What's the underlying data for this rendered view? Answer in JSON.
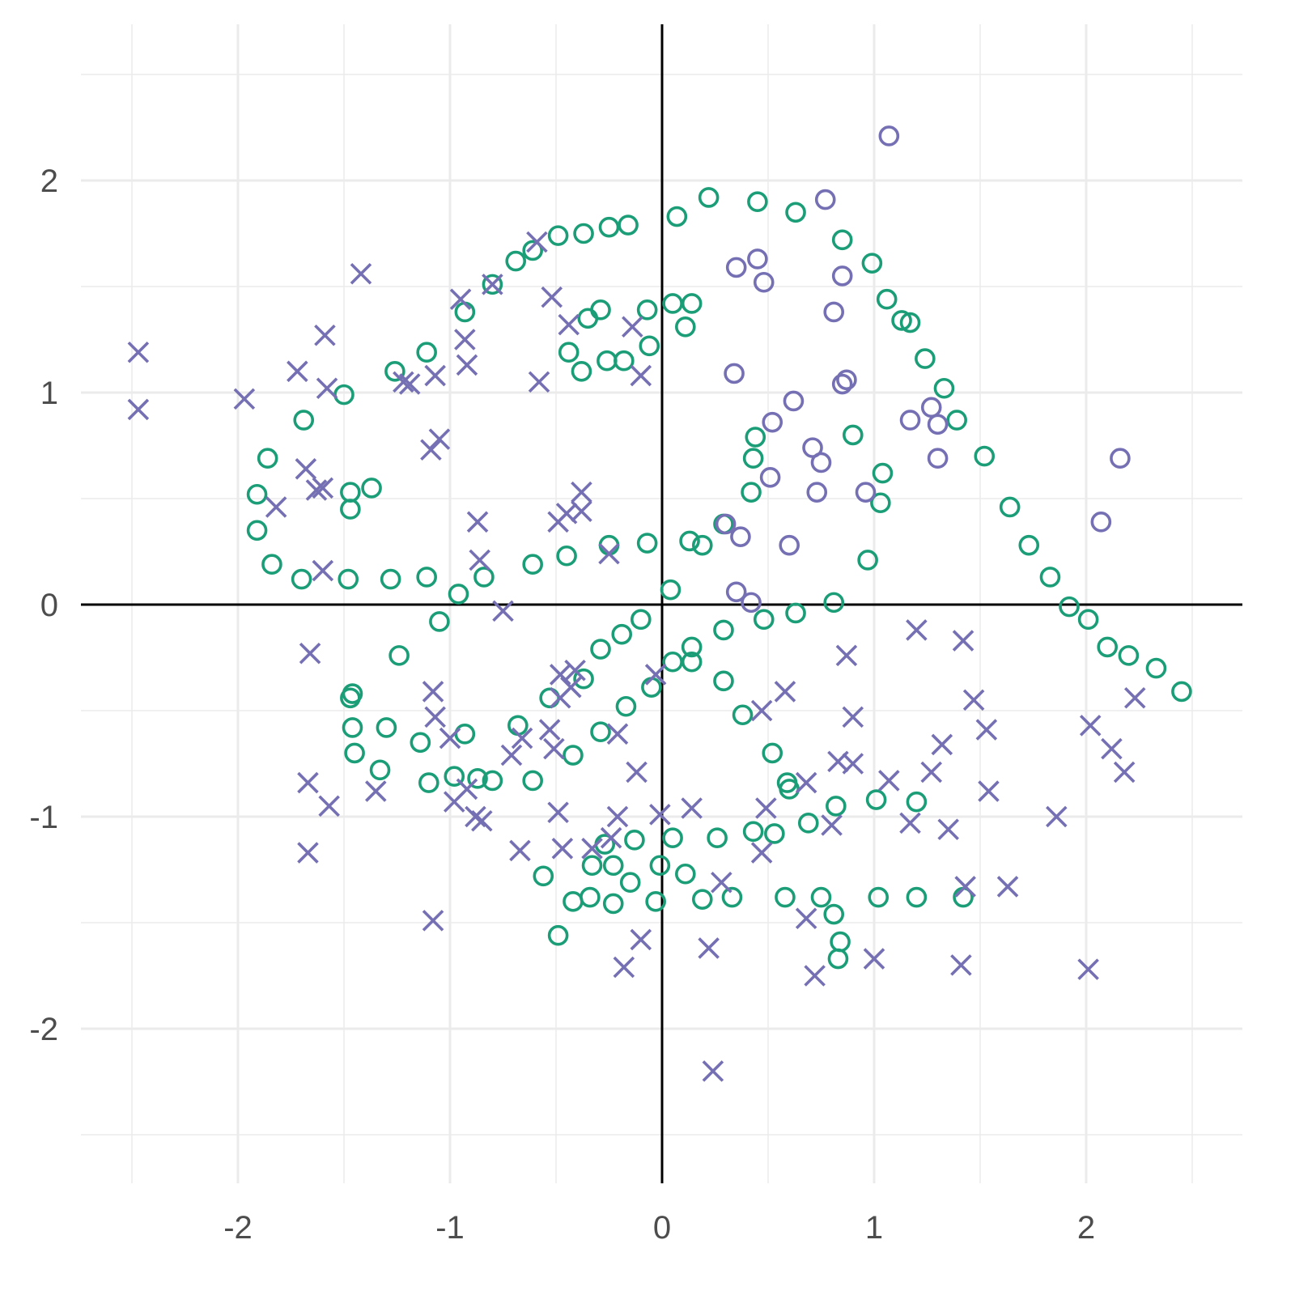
{
  "chart_data": {
    "type": "scatter",
    "title": "",
    "xlabel": "",
    "ylabel": "",
    "xlim": [
      -2.5,
      2.5
    ],
    "ylim": [
      -2.5,
      2.5
    ],
    "x_ticks": [
      -2,
      -1,
      0,
      1,
      2
    ],
    "y_ticks": [
      -2,
      -1,
      0,
      1,
      2
    ],
    "x_tick_labels": [
      "-2",
      "-1",
      "0",
      "1",
      "2"
    ],
    "y_tick_labels": [
      "-2",
      "-1",
      "0",
      "1",
      "2"
    ],
    "grid": true,
    "reference_lines": {
      "x": 0,
      "y": 0
    },
    "legend": "none",
    "series": [
      {
        "marker": "circle",
        "color": "#1b9e77",
        "points": [
          [
            -0.69,
            1.62
          ],
          [
            -0.61,
            1.67
          ],
          [
            -0.49,
            1.74
          ],
          [
            -0.37,
            1.75
          ],
          [
            -0.25,
            1.78
          ],
          [
            -0.16,
            1.79
          ],
          [
            0.07,
            1.83
          ],
          [
            0.22,
            1.92
          ],
          [
            0.45,
            1.9
          ],
          [
            0.63,
            1.85
          ],
          [
            0.85,
            1.72
          ],
          [
            0.99,
            1.61
          ],
          [
            1.06,
            1.44
          ],
          [
            1.13,
            1.34
          ],
          [
            1.17,
            1.33
          ],
          [
            1.24,
            1.16
          ],
          [
            1.33,
            1.02
          ],
          [
            1.39,
            0.87
          ],
          [
            1.52,
            0.7
          ],
          [
            1.64,
            0.46
          ],
          [
            1.73,
            0.28
          ],
          [
            1.83,
            0.13
          ],
          [
            1.92,
            -0.01
          ],
          [
            2.01,
            -0.07
          ],
          [
            2.1,
            -0.2
          ],
          [
            2.2,
            -0.24
          ],
          [
            2.33,
            -0.3
          ],
          [
            2.45,
            -0.41
          ],
          [
            -0.93,
            1.38
          ],
          [
            -0.8,
            1.51
          ],
          [
            -0.29,
            1.39
          ],
          [
            -0.35,
            1.35
          ],
          [
            -0.44,
            1.19
          ],
          [
            -0.38,
            1.1
          ],
          [
            -0.26,
            1.15
          ],
          [
            -0.18,
            1.15
          ],
          [
            -0.06,
            1.22
          ],
          [
            -0.07,
            1.39
          ],
          [
            0.05,
            1.42
          ],
          [
            0.14,
            1.42
          ],
          [
            0.11,
            1.31
          ],
          [
            -1.26,
            1.1
          ],
          [
            -1.11,
            1.19
          ],
          [
            -1.5,
            0.99
          ],
          [
            -1.69,
            0.87
          ],
          [
            -1.86,
            0.69
          ],
          [
            -1.91,
            0.52
          ],
          [
            -1.91,
            0.35
          ],
          [
            -1.84,
            0.19
          ],
          [
            -1.7,
            0.12
          ],
          [
            -1.48,
            0.12
          ],
          [
            -1.28,
            0.12
          ],
          [
            -1.11,
            0.13
          ],
          [
            -0.96,
            0.05
          ],
          [
            -0.84,
            0.13
          ],
          [
            -0.61,
            0.19
          ],
          [
            -0.45,
            0.23
          ],
          [
            -0.25,
            0.28
          ],
          [
            -0.07,
            0.29
          ],
          [
            0.04,
            0.07
          ],
          [
            0.13,
            0.3
          ],
          [
            0.19,
            0.28
          ],
          [
            0.29,
            0.38
          ],
          [
            -1.47,
            0.53
          ],
          [
            -1.47,
            0.45
          ],
          [
            -1.37,
            0.55
          ],
          [
            0.42,
            0.53
          ],
          [
            0.43,
            0.69
          ],
          [
            0.44,
            0.79
          ],
          [
            0.81,
            0.01
          ],
          [
            0.9,
            0.8
          ],
          [
            0.97,
            0.21
          ],
          [
            1.03,
            0.48
          ],
          [
            1.04,
            0.62
          ],
          [
            -1.05,
            -0.08
          ],
          [
            -1.24,
            -0.24
          ],
          [
            -1.46,
            -0.42
          ],
          [
            -1.47,
            -0.44
          ],
          [
            -1.46,
            -0.58
          ],
          [
            -1.45,
            -0.7
          ],
          [
            -1.3,
            -0.58
          ],
          [
            -1.33,
            -0.78
          ],
          [
            -1.14,
            -0.65
          ],
          [
            -1.1,
            -0.84
          ],
          [
            -0.98,
            -0.81
          ],
          [
            -0.93,
            -0.61
          ],
          [
            -0.87,
            -0.82
          ],
          [
            -0.8,
            -0.83
          ],
          [
            -0.68,
            -0.57
          ],
          [
            -0.61,
            -0.83
          ],
          [
            -0.53,
            -0.44
          ],
          [
            -0.42,
            -0.71
          ],
          [
            -0.37,
            -0.35
          ],
          [
            -0.29,
            -0.6
          ],
          [
            -0.29,
            -0.21
          ],
          [
            -0.19,
            -0.14
          ],
          [
            -0.17,
            -0.48
          ],
          [
            -0.1,
            -0.07
          ],
          [
            -0.05,
            -0.39
          ],
          [
            0.05,
            -0.27
          ],
          [
            0.14,
            -0.2
          ],
          [
            0.14,
            -0.27
          ],
          [
            0.29,
            -0.12
          ],
          [
            0.29,
            -0.36
          ],
          [
            0.38,
            -0.52
          ],
          [
            0.48,
            -0.07
          ],
          [
            0.63,
            -0.04
          ],
          [
            0.52,
            -0.7
          ],
          [
            0.59,
            -0.84
          ],
          [
            0.6,
            -0.87
          ],
          [
            0.69,
            -1.03
          ],
          [
            0.82,
            -0.95
          ],
          [
            1.01,
            -0.92
          ],
          [
            1.2,
            -0.93
          ],
          [
            -0.56,
            -1.28
          ],
          [
            -0.42,
            -1.4
          ],
          [
            -0.34,
            -1.38
          ],
          [
            -0.33,
            -1.23
          ],
          [
            -0.27,
            -1.13
          ],
          [
            -0.23,
            -1.23
          ],
          [
            -0.15,
            -1.31
          ],
          [
            -0.13,
            -1.11
          ],
          [
            -0.23,
            -1.41
          ],
          [
            -0.03,
            -1.4
          ],
          [
            -0.01,
            -1.23
          ],
          [
            0.05,
            -1.1
          ],
          [
            0.11,
            -1.27
          ],
          [
            0.19,
            -1.39
          ],
          [
            0.26,
            -1.1
          ],
          [
            0.33,
            -1.38
          ],
          [
            0.43,
            -1.07
          ],
          [
            0.53,
            -1.08
          ],
          [
            0.58,
            -1.38
          ],
          [
            0.75,
            -1.38
          ],
          [
            0.81,
            -1.46
          ],
          [
            0.84,
            -1.59
          ],
          [
            0.83,
            -1.67
          ],
          [
            1.02,
            -1.38
          ],
          [
            1.2,
            -1.38
          ],
          [
            1.42,
            -1.38
          ],
          [
            -0.49,
            -1.56
          ]
        ]
      },
      {
        "marker": "circle",
        "color": "#7570b3",
        "points": [
          [
            1.07,
            2.21
          ],
          [
            0.77,
            1.91
          ],
          [
            0.35,
            1.59
          ],
          [
            0.45,
            1.63
          ],
          [
            0.48,
            1.52
          ],
          [
            0.85,
            1.55
          ],
          [
            0.81,
            1.38
          ],
          [
            0.34,
            1.09
          ],
          [
            0.62,
            0.96
          ],
          [
            0.85,
            1.04
          ],
          [
            0.87,
            1.06
          ],
          [
            0.52,
            0.86
          ],
          [
            1.17,
            0.87
          ],
          [
            1.27,
            0.93
          ],
          [
            1.3,
            0.85
          ],
          [
            1.3,
            0.69
          ],
          [
            0.71,
            0.74
          ],
          [
            0.75,
            0.67
          ],
          [
            0.51,
            0.6
          ],
          [
            0.73,
            0.53
          ],
          [
            0.96,
            0.53
          ],
          [
            0.3,
            0.38
          ],
          [
            0.37,
            0.32
          ],
          [
            0.6,
            0.28
          ],
          [
            0.35,
            0.06
          ],
          [
            0.42,
            0.01
          ],
          [
            2.16,
            0.69
          ],
          [
            2.07,
            0.39
          ]
        ]
      },
      {
        "marker": "cross",
        "color": "#7570b3",
        "points": [
          [
            -2.47,
            1.19
          ],
          [
            -2.47,
            0.92
          ],
          [
            -1.97,
            0.97
          ],
          [
            -1.72,
            1.1
          ],
          [
            -1.59,
            1.27
          ],
          [
            -1.58,
            1.02
          ],
          [
            -1.42,
            1.56
          ],
          [
            -1.22,
            1.05
          ],
          [
            -1.19,
            1.04
          ],
          [
            -1.07,
            1.08
          ],
          [
            -1.09,
            0.73
          ],
          [
            -1.05,
            0.78
          ],
          [
            -0.95,
            1.44
          ],
          [
            -0.93,
            1.25
          ],
          [
            -0.92,
            1.13
          ],
          [
            -0.8,
            1.51
          ],
          [
            -0.58,
            1.05
          ],
          [
            -0.52,
            1.45
          ],
          [
            -0.44,
            1.32
          ],
          [
            -0.14,
            1.31
          ],
          [
            -0.1,
            1.08
          ],
          [
            -0.59,
            1.71
          ],
          [
            -1.68,
            0.64
          ],
          [
            -1.82,
            0.46
          ],
          [
            -1.63,
            0.54
          ],
          [
            -1.6,
            0.55
          ],
          [
            -1.6,
            0.16
          ],
          [
            -0.87,
            0.39
          ],
          [
            -0.86,
            0.21
          ],
          [
            -0.75,
            -0.03
          ],
          [
            -0.49,
            0.39
          ],
          [
            -0.45,
            0.43
          ],
          [
            -0.38,
            0.44
          ],
          [
            -0.38,
            0.53
          ],
          [
            -0.25,
            0.24
          ],
          [
            -1.66,
            -0.23
          ],
          [
            -1.67,
            -0.84
          ],
          [
            -1.57,
            -0.95
          ],
          [
            -1.67,
            -1.17
          ],
          [
            -1.35,
            -0.88
          ],
          [
            -1.08,
            -0.41
          ],
          [
            -1.07,
            -0.53
          ],
          [
            -1.08,
            -1.49
          ],
          [
            -1.0,
            -0.63
          ],
          [
            -0.98,
            -0.93
          ],
          [
            -0.92,
            -0.87
          ],
          [
            -0.88,
            -1.0
          ],
          [
            -0.85,
            -1.02
          ],
          [
            -0.71,
            -0.71
          ],
          [
            -0.66,
            -0.63
          ],
          [
            -0.67,
            -1.16
          ],
          [
            -0.53,
            -0.59
          ],
          [
            -0.51,
            -0.68
          ],
          [
            -0.48,
            -0.44
          ],
          [
            -0.48,
            -0.33
          ],
          [
            -0.43,
            -0.39
          ],
          [
            -0.41,
            -0.31
          ],
          [
            -0.49,
            -0.98
          ],
          [
            -0.47,
            -1.15
          ],
          [
            -0.33,
            -1.15
          ],
          [
            -0.24,
            -1.1
          ],
          [
            -0.21,
            -1.0
          ],
          [
            -0.21,
            -0.61
          ],
          [
            -0.12,
            -0.79
          ],
          [
            -0.1,
            -1.58
          ],
          [
            -0.18,
            -1.71
          ],
          [
            -0.01,
            -0.99
          ],
          [
            -0.03,
            -0.33
          ],
          [
            0.14,
            -0.96
          ],
          [
            0.22,
            -1.62
          ],
          [
            0.28,
            -1.31
          ],
          [
            0.24,
            -2.2
          ],
          [
            0.47,
            -0.5
          ],
          [
            0.49,
            -0.96
          ],
          [
            0.47,
            -1.17
          ],
          [
            0.58,
            -0.41
          ],
          [
            0.68,
            -0.84
          ],
          [
            0.68,
            -1.48
          ],
          [
            0.72,
            -1.75
          ],
          [
            0.8,
            -1.04
          ],
          [
            0.83,
            -0.74
          ],
          [
            0.87,
            -0.24
          ],
          [
            0.9,
            -0.53
          ],
          [
            0.9,
            -0.75
          ],
          [
            1.0,
            -1.67
          ],
          [
            1.07,
            -0.83
          ],
          [
            1.17,
            -1.03
          ],
          [
            1.2,
            -0.12
          ],
          [
            1.27,
            -0.79
          ],
          [
            1.32,
            -0.66
          ],
          [
            1.35,
            -1.06
          ],
          [
            1.41,
            -1.7
          ],
          [
            1.42,
            -0.17
          ],
          [
            1.43,
            -1.33
          ],
          [
            1.47,
            -0.45
          ],
          [
            1.53,
            -0.59
          ],
          [
            1.54,
            -0.88
          ],
          [
            1.63,
            -1.33
          ],
          [
            1.86,
            -1.0
          ],
          [
            2.01,
            -1.72
          ],
          [
            2.02,
            -0.57
          ],
          [
            2.12,
            -0.68
          ],
          [
            2.18,
            -0.79
          ],
          [
            2.23,
            -0.44
          ]
        ]
      }
    ]
  }
}
